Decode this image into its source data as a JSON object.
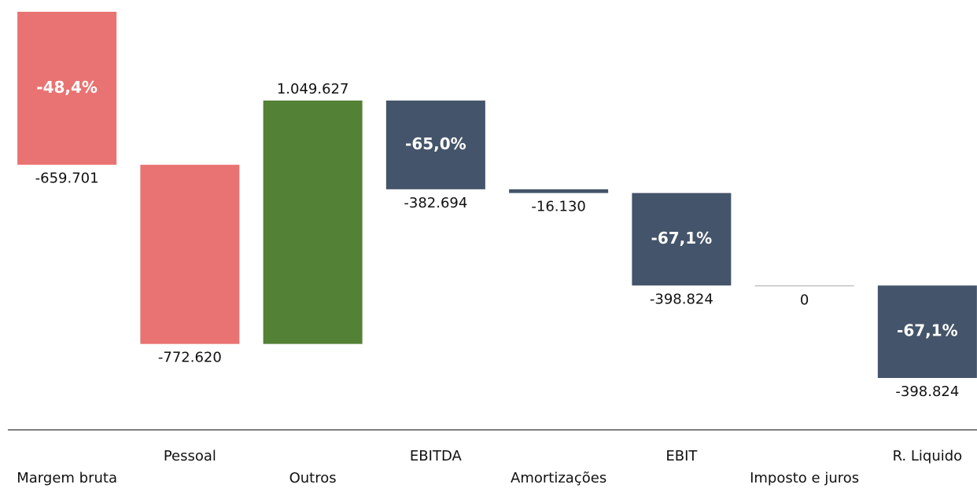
{
  "chart_data": {
    "type": "waterfall",
    "categories": [
      "Margem bruta",
      "Pessoal",
      "Outros",
      "EBITDA",
      "Amortizações",
      "EBIT",
      "Imposto e juros",
      "R. Liquido"
    ],
    "values": [
      -659701,
      -772620,
      1049627,
      -382694,
      -16130,
      -398824,
      0,
      -398824
    ],
    "value_labels": [
      "-659.701",
      "-772.620",
      "1.049.627",
      "-382.694",
      "-16.130",
      "-398.824",
      "0",
      "-398.824"
    ],
    "bar_labels": [
      "-48,4%",
      null,
      null,
      "-65,0%",
      null,
      "-67,1%",
      null,
      "-67,1%"
    ],
    "colors": [
      "#e87372",
      "#e87372",
      "#538135",
      "#44546a",
      "#44546a",
      "#44546a",
      "#a6a6a6",
      "#44546a"
    ]
  }
}
